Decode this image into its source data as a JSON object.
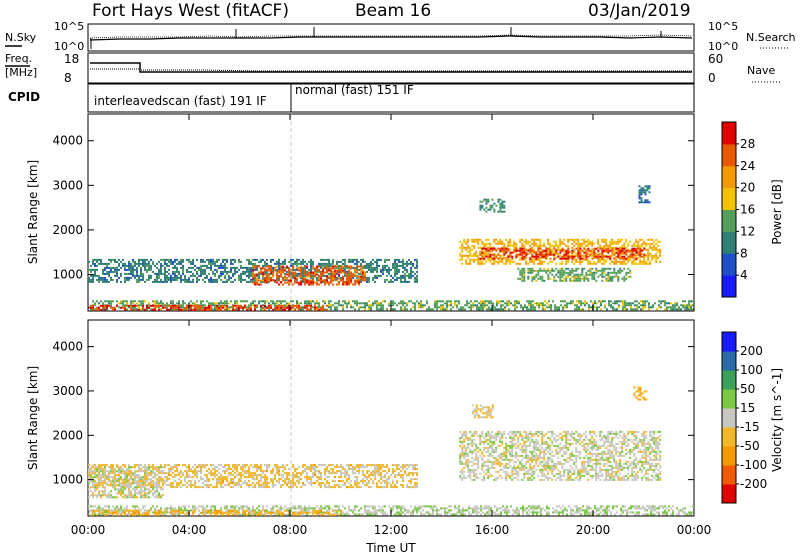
{
  "header": {
    "title": "Fort Hays West (fitACF)",
    "beam": "Beam 16",
    "date": "03/Jan/2019"
  },
  "top_panels": {
    "nsky_label": "N.Sky",
    "nsearch_label": "N.Search",
    "noise_ticks_left": [
      "10^5",
      "10^0"
    ],
    "noise_ticks_right": [
      "10^5",
      "10^0"
    ],
    "freq_label_1": "Freq.",
    "freq_label_2": "[MHz]",
    "freq_ticks": [
      "18",
      "8"
    ],
    "nave_label": "Nave",
    "nave_ticks": [
      "60",
      "0"
    ],
    "cpid_label": "CPID",
    "cpid_segment_1": "interleavedscan (fast) 191 IF",
    "cpid_segment_2": "normal (fast) 151 IF"
  },
  "chart_data": [
    {
      "type": "heatmap",
      "panel": "power",
      "ylabel": "Slant Range [km]",
      "xlabel": "",
      "x_ticks": [
        "00:00",
        "04:00",
        "08:00",
        "12:00",
        "16:00",
        "20:00",
        "00:00"
      ],
      "y_ticks": [
        1000,
        2000,
        3000,
        4000
      ],
      "xlim_hours": [
        0,
        24
      ],
      "ylim_km": [
        180,
        4600
      ],
      "colorbar": {
        "label": "Power [dB]",
        "ticks": [
          "28",
          "24",
          "20",
          "16",
          "12",
          "8",
          "4"
        ],
        "range": [
          0,
          32
        ],
        "colors": [
          "#1a1aff",
          "#1e4fc8",
          "#2f7f74",
          "#54a05a",
          "#f2c200",
          "#f39a00",
          "#e85a00",
          "#e00000"
        ]
      },
      "echo_regions": [
        {
          "t0": 0.0,
          "t1": 13.0,
          "r0": 850,
          "r1": 1350,
          "power_db": 10
        },
        {
          "t0": 6.5,
          "t1": 11.0,
          "r0": 780,
          "r1": 1200,
          "power_db": 26
        },
        {
          "t0": 0.0,
          "t1": 24.0,
          "r0": 200,
          "r1": 420,
          "power_db": 14
        },
        {
          "t0": 0.0,
          "t1": 9.5,
          "r0": 220,
          "r1": 320,
          "power_db": 28
        },
        {
          "t0": 14.7,
          "t1": 22.7,
          "r0": 1250,
          "r1": 1800,
          "power_db": 20
        },
        {
          "t0": 15.5,
          "t1": 22.0,
          "r0": 1350,
          "r1": 1600,
          "power_db": 28
        },
        {
          "t0": 17.0,
          "t1": 21.5,
          "r0": 850,
          "r1": 1150,
          "power_db": 14
        },
        {
          "t0": 15.5,
          "t1": 16.5,
          "r0": 2400,
          "r1": 2700,
          "power_db": 12
        },
        {
          "t0": 21.8,
          "t1": 22.2,
          "r0": 2600,
          "r1": 3000,
          "power_db": 8
        }
      ]
    },
    {
      "type": "heatmap",
      "panel": "velocity",
      "ylabel": "Slant Range [km]",
      "xlabel": "Time UT",
      "x_ticks": [
        "00:00",
        "04:00",
        "08:00",
        "12:00",
        "16:00",
        "20:00",
        "00:00"
      ],
      "y_ticks": [
        1000,
        2000,
        3000,
        4000
      ],
      "xlim_hours": [
        0,
        24
      ],
      "ylim_km": [
        180,
        4600
      ],
      "colorbar": {
        "label": "Velocity [m s^-1]",
        "ticks": [
          "200",
          "100",
          "50",
          "15",
          "-15",
          "-50",
          "-100",
          "-200"
        ],
        "range": [
          -250,
          250
        ],
        "colors": [
          "#e00000",
          "#f05a00",
          "#f39a00",
          "#f3b72a",
          "#c8c8c0",
          "#7ac943",
          "#3aa05a",
          "#2a6aa8",
          "#1a1aff"
        ]
      },
      "echo_regions": [
        {
          "t0": 0.0,
          "t1": 13.0,
          "r0": 850,
          "r1": 1350,
          "velocity": -40
        },
        {
          "t0": 0.0,
          "t1": 3.0,
          "r0": 600,
          "r1": 1300,
          "velocity": 0
        },
        {
          "t0": 0.0,
          "t1": 24.0,
          "r0": 200,
          "r1": 420,
          "velocity": 20
        },
        {
          "t0": 0.0,
          "t1": 10.0,
          "r0": 220,
          "r1": 320,
          "velocity": -60
        },
        {
          "t0": 14.7,
          "t1": 22.7,
          "r0": 1000,
          "r1": 2100,
          "velocity": 0
        },
        {
          "t0": 15.2,
          "t1": 16.0,
          "r0": 2400,
          "r1": 2700,
          "velocity": -40
        },
        {
          "t0": 21.6,
          "t1": 22.1,
          "r0": 2800,
          "r1": 3100,
          "velocity": -60
        }
      ]
    }
  ]
}
